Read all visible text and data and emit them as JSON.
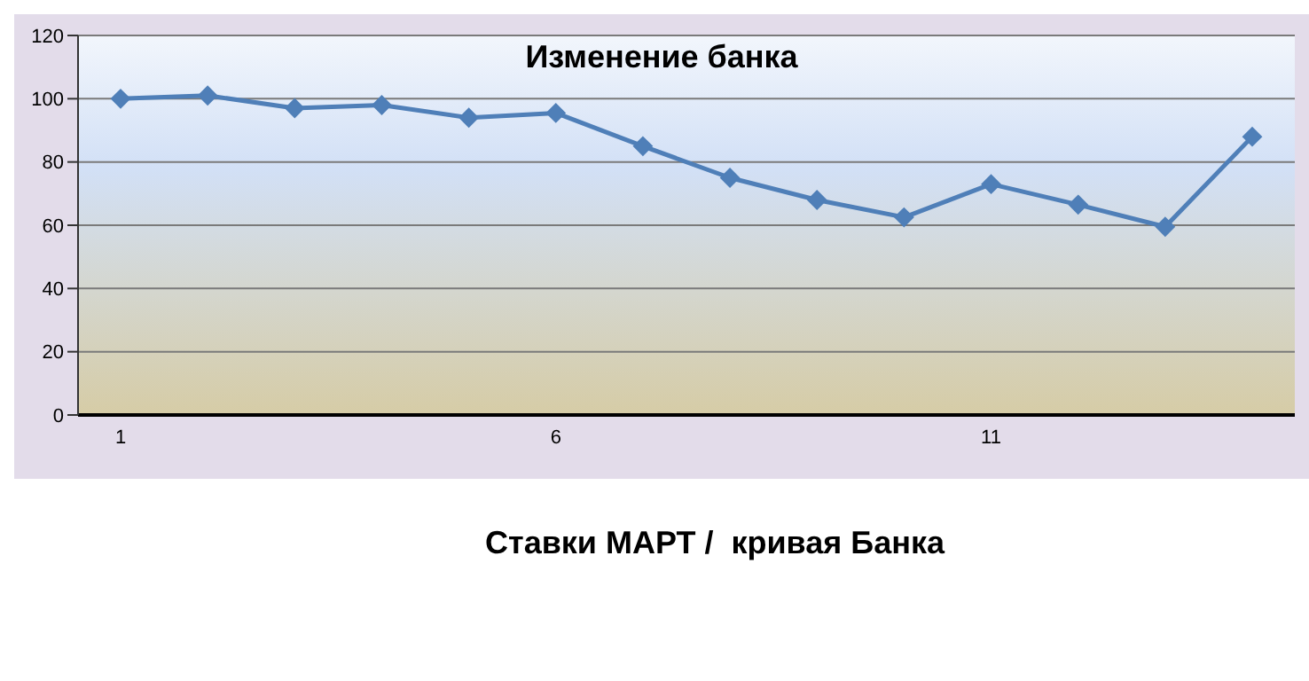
{
  "chart_data": {
    "type": "line",
    "title": "Изменение банка",
    "categories": [
      "1",
      null,
      null,
      null,
      null,
      "6",
      null,
      null,
      null,
      null,
      "11",
      null,
      null,
      null
    ],
    "series": [
      {
        "color": "#4f7fb8",
        "values": [
          100,
          101,
          97,
          98,
          94,
          95.5,
          85,
          75,
          68,
          62.5,
          73,
          66.5,
          59.5,
          88
        ]
      }
    ],
    "ylim": [
      0,
      120
    ],
    "yticks": [
      0,
      20,
      40,
      60,
      80,
      100,
      120
    ],
    "grid": "y",
    "legend": false,
    "marker": "diamond",
    "line_style": "solid",
    "annotations": [
      "Ставки МАРТ /  кривая Банка"
    ]
  }
}
